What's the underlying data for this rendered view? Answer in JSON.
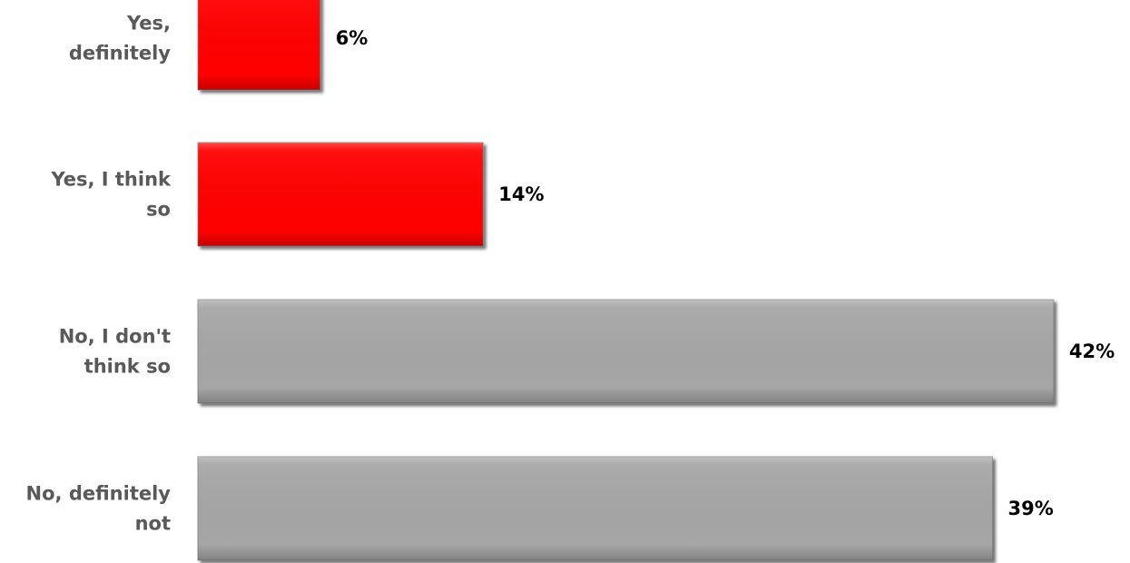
{
  "chart_data": {
    "type": "bar",
    "orientation": "horizontal",
    "categories": [
      "Yes, definitely",
      "Yes, I think so",
      "No, I don't think so",
      "No, definitely not"
    ],
    "category_lines": [
      [
        "Yes,",
        "definitely"
      ],
      [
        "Yes, I think",
        "so"
      ],
      [
        "No, I don't",
        "think so"
      ],
      [
        "No, definitely",
        "not"
      ]
    ],
    "values": [
      6,
      14,
      42,
      39
    ],
    "value_labels": [
      "6%",
      "14%",
      "42%",
      "39%"
    ],
    "bar_colors": [
      "#ff0000",
      "#ff0000",
      "#a6a6a6",
      "#a6a6a6"
    ],
    "xlim": [
      0,
      42
    ],
    "grid": false,
    "legend": "none",
    "title": "",
    "xlabel": "",
    "ylabel": ""
  }
}
